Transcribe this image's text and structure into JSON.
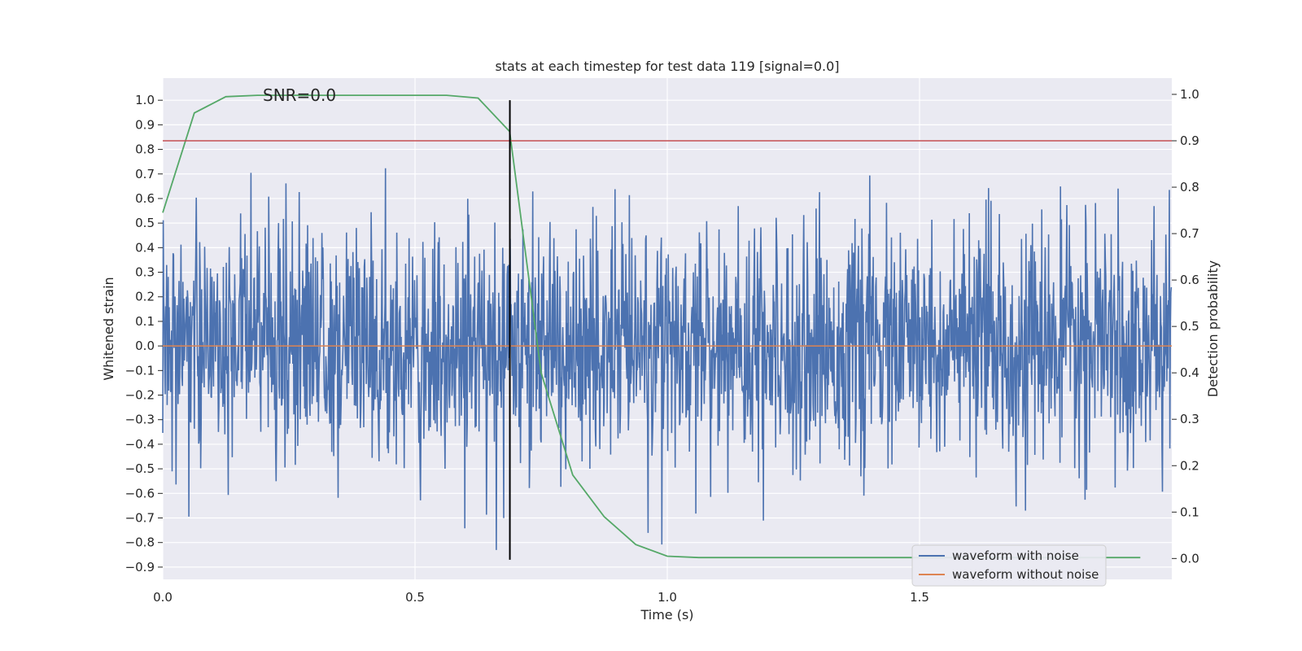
{
  "chart_data": {
    "type": "line",
    "title": "stats at each timestep for test data 119 [signal=0.0]",
    "xlabel": "Time (s)",
    "ylabel_left": "Whitened strain",
    "ylabel_right": "Detection probability",
    "xlim": [
      0.0,
      2.0
    ],
    "ylim_left": [
      -0.95,
      1.09
    ],
    "ylim_right": [
      -0.045,
      1.035
    ],
    "x_ticks": [
      0.0,
      0.5,
      1.0,
      1.5
    ],
    "x_tick_labels": [
      "0.0",
      "0.5",
      "1.0",
      "1.5"
    ],
    "y_left_ticks": [
      1.0,
      0.9,
      0.8,
      0.7,
      0.6,
      0.5,
      0.4,
      0.3,
      0.2,
      0.1,
      0.0,
      -0.1,
      -0.2,
      -0.3,
      -0.4,
      -0.5,
      -0.6,
      -0.7,
      -0.8,
      -0.9
    ],
    "y_left_tick_labels": [
      "1.0",
      "0.9",
      "0.8",
      "0.7",
      "0.6",
      "0.5",
      "0.4",
      "0.3",
      "0.2",
      "0.1",
      "0.0",
      "−0.1",
      "−0.2",
      "−0.3",
      "−0.4",
      "−0.5",
      "−0.6",
      "−0.7",
      "−0.8",
      "−0.9"
    ],
    "y_right_ticks": [
      1.0,
      0.9,
      0.8,
      0.7,
      0.6,
      0.5,
      0.4,
      0.3,
      0.2,
      0.1,
      0.0
    ],
    "y_right_tick_labels": [
      "1.0",
      "0.9",
      "0.8",
      "0.7",
      "0.6",
      "0.5",
      "0.4",
      "0.3",
      "0.2",
      "0.1",
      "0.0"
    ],
    "grid": true,
    "legend_position": "lower-right",
    "annotation": "SNR=0.0",
    "threshold": 0.9,
    "marker_time": 0.688,
    "colors": {
      "noise": "#4c72b0",
      "clean": "#dd8452",
      "probability": "#55a868",
      "threshold": "#c44e52",
      "marker": "#000000",
      "plot_bg": "#eaeaf2",
      "grid": "#ffffff"
    },
    "series": [
      {
        "name": "waveform with noise",
        "axis": "left",
        "style": "noisy line, ~2048 samples, amplitude mostly within ±0.6, sparse peaks near 1.0 and -0.86"
      },
      {
        "name": "waveform without noise",
        "axis": "left",
        "x": [
          0.0,
          2.0
        ],
        "y": [
          0.0,
          0.0
        ]
      },
      {
        "axis": "right",
        "x": [
          0.0,
          0.0625,
          0.125,
          0.1875,
          0.25,
          0.3125,
          0.375,
          0.4375,
          0.5,
          0.5625,
          0.625,
          0.6875,
          0.75,
          0.8125,
          0.875,
          0.9375,
          1.0,
          1.0625,
          1.125,
          1.1875,
          1.25,
          1.3125,
          1.375,
          1.4375,
          1.5,
          1.5625,
          1.625,
          1.6875,
          1.75,
          1.8125,
          1.875,
          1.9375
        ],
        "y": [
          0.745,
          0.96,
          0.995,
          0.998,
          0.998,
          0.998,
          0.998,
          0.998,
          0.998,
          0.998,
          0.992,
          0.92,
          0.4,
          0.18,
          0.09,
          0.03,
          0.005,
          0.002,
          0.002,
          0.002,
          0.002,
          0.002,
          0.002,
          0.002,
          0.002,
          0.002,
          0.002,
          0.002,
          0.002,
          0.002,
          0.002,
          0.002
        ]
      }
    ]
  }
}
